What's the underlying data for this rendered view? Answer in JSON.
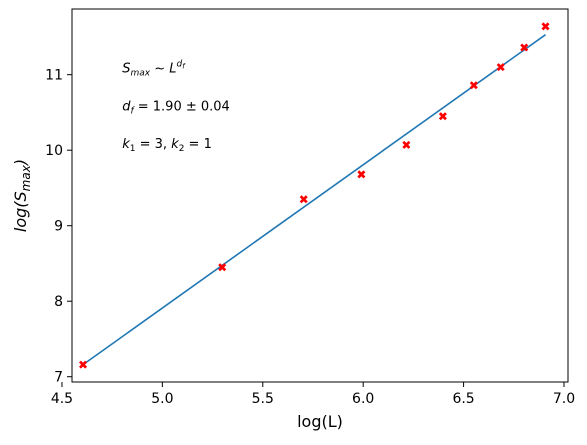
{
  "chart_data": {
    "type": "scatter",
    "xlabel": "log(L)",
    "ylabel": "log(Smax)",
    "xlim": [
      4.55,
      7.02
    ],
    "ylim": [
      6.93,
      11.87
    ],
    "xticks": [
      4.5,
      5.0,
      5.5,
      6.0,
      6.5,
      7.0
    ],
    "xtick_labels": [
      "4.5",
      "5.0",
      "5.5",
      "6.0",
      "6.5",
      "7.0"
    ],
    "yticks": [
      7,
      8,
      9,
      10,
      11
    ],
    "ytick_labels": [
      "7",
      "8",
      "9",
      "10",
      "11"
    ],
    "grid": false,
    "series": [
      {
        "kind": "points",
        "marker": "X",
        "color": "#ff0000",
        "x": [
          4.605,
          5.298,
          5.704,
          5.991,
          6.215,
          6.397,
          6.551,
          6.685,
          6.802,
          6.908
        ],
        "y": [
          7.16,
          8.45,
          9.35,
          9.68,
          10.07,
          10.45,
          10.86,
          11.1,
          11.36,
          11.64
        ]
      },
      {
        "kind": "fit-line",
        "color": "#1f77b4",
        "x": [
          4.605,
          6.908
        ],
        "y": [
          7.16,
          11.53
        ]
      }
    ],
    "annotations": [
      {
        "id": "scaling",
        "base": "S",
        "sub": "max",
        "mid": " ~ ",
        "base2": "L",
        "sup_base": "d",
        "sup_sub": "f",
        "x": 4.8,
        "y": 11.0
      },
      {
        "id": "dfvalue",
        "base": "d",
        "sub": "f",
        "rest": " = 1.90 ± 0.04",
        "x": 4.8,
        "y": 10.5
      },
      {
        "id": "kvalues",
        "base": "k",
        "sub": "1",
        "rest": " = 3, ",
        "base2": "k",
        "sub2": "2",
        "rest2": " = 1",
        "x": 4.8,
        "y": 10.0
      }
    ]
  }
}
